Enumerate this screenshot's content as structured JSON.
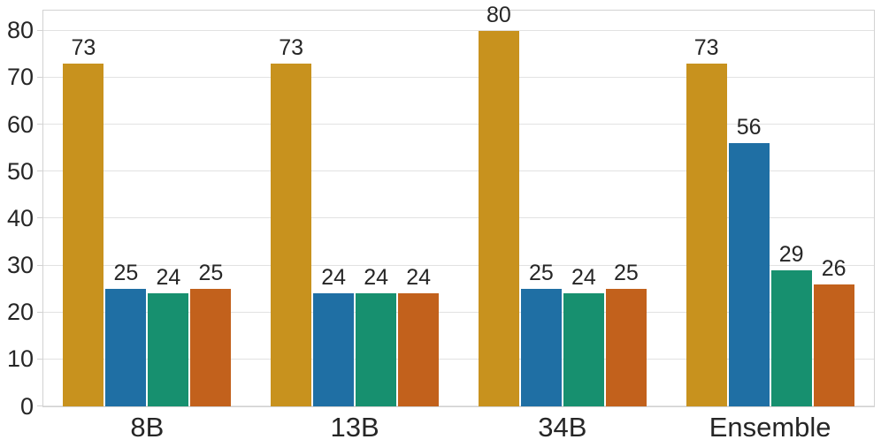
{
  "chart_data": {
    "type": "bar",
    "title": "",
    "xlabel": "",
    "ylabel": "",
    "categories": [
      "8B",
      "13B",
      "34B",
      "Ensemble"
    ],
    "series": [
      {
        "name": "gold",
        "color": "#C8921E",
        "values": [
          73,
          73,
          80,
          73
        ],
        "labels": [
          "73",
          "73",
          "80",
          "73"
        ]
      },
      {
        "name": "blue",
        "color": "#1F6FA4",
        "values": [
          25,
          24,
          25,
          56
        ],
        "labels": [
          "25",
          "24",
          "25",
          "56"
        ]
      },
      {
        "name": "teal",
        "color": "#17906F",
        "values": [
          24,
          24,
          24,
          29
        ],
        "labels": [
          "24",
          "24",
          "24",
          "29"
        ]
      },
      {
        "name": "rust",
        "color": "#C2611C",
        "values": [
          25,
          24,
          25,
          26
        ],
        "labels": [
          "25",
          "24",
          "25",
          "26"
        ]
      }
    ],
    "ylim": [
      0,
      84.3
    ],
    "yticks": [
      0,
      10,
      20,
      30,
      40,
      50,
      60,
      70,
      80
    ],
    "grid": true,
    "legend": false
  },
  "style": {
    "background": "#ffffff",
    "text_color": "#262626",
    "grid_color": "#e2e2e2",
    "spine_color": "#d2d2d2"
  }
}
